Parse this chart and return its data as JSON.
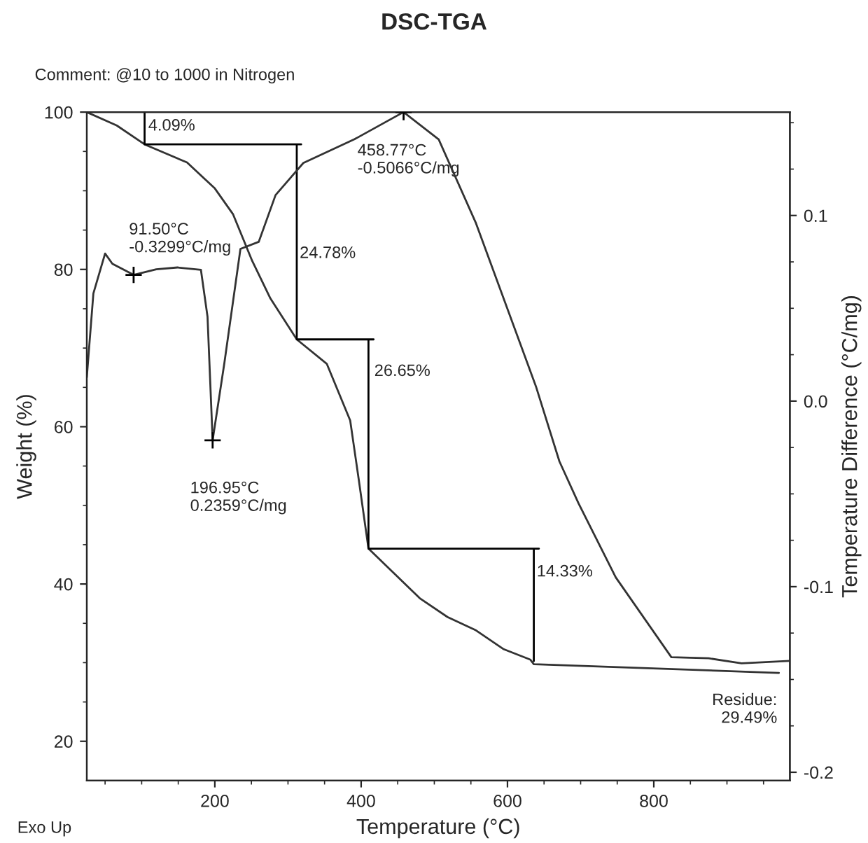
{
  "chart_data": {
    "type": "line",
    "title": "DSC-TGA",
    "xlabel": "Temperature (°C)",
    "ylabel": "Weight (%)",
    "y2label": "Temperature Difference (°C/mg)",
    "xlim": [
      25,
      986
    ],
    "ylim": [
      15,
      100
    ],
    "y2lim": [
      -0.2045,
      0.1557
    ],
    "xticks": [
      {
        "value": 50,
        "label": null
      },
      {
        "value": 100,
        "label": null
      },
      {
        "value": 150,
        "label": null
      },
      200,
      {
        "value": 250,
        "label": null
      },
      {
        "value": 300,
        "label": null
      },
      {
        "value": 350,
        "label": null
      },
      400,
      {
        "value": 450,
        "label": null
      },
      {
        "value": 500,
        "label": null
      },
      {
        "value": 550,
        "label": null
      },
      600,
      {
        "value": 650,
        "label": null
      },
      {
        "value": 700,
        "label": null
      },
      {
        "value": 750,
        "label": null
      },
      800,
      {
        "value": 850,
        "label": null
      },
      {
        "value": 900,
        "label": null
      },
      {
        "value": 950,
        "label": null
      }
    ],
    "yticks": [
      20,
      {
        "value": 25,
        "label": null
      },
      {
        "value": 30,
        "label": null
      },
      {
        "value": 35,
        "label": null
      },
      40,
      {
        "value": 45,
        "label": null
      },
      {
        "value": 50,
        "label": null
      },
      {
        "value": 55,
        "label": null
      },
      60,
      {
        "value": 65,
        "label": null
      },
      {
        "value": 70,
        "label": null
      },
      {
        "value": 75,
        "label": null
      },
      80,
      {
        "value": 85,
        "label": null
      },
      {
        "value": 90,
        "label": null
      },
      {
        "value": 95,
        "label": null
      },
      100
    ],
    "y2ticks": [
      -0.2,
      {
        "value": -0.175,
        "label": null
      },
      {
        "value": -0.15,
        "label": null
      },
      {
        "value": -0.125,
        "label": null
      },
      -0.1,
      {
        "value": -0.075,
        "label": null
      },
      {
        "value": -0.05,
        "label": null
      },
      {
        "value": -0.025,
        "label": null
      },
      {
        "value": 0.0,
        "label": "0.0"
      },
      {
        "value": 0.025,
        "label": null
      },
      {
        "value": 0.05,
        "label": null
      },
      {
        "value": 0.075,
        "label": null
      },
      {
        "value": 0.1,
        "label": "0.1"
      },
      {
        "value": 0.125,
        "label": null
      },
      {
        "value": 0.15,
        "label": null
      }
    ],
    "grid": false,
    "legend": false,
    "series": [
      {
        "axis": "y",
        "color": "#333333",
        "x": [
          25,
          66,
          104,
          162,
          200,
          225,
          251,
          276,
          312,
          353,
          385,
          397,
          410,
          480,
          518,
          557,
          595,
          631,
          636,
          971
        ],
        "values": [
          100,
          98.3,
          95.9,
          93.6,
          90.3,
          87,
          81.1,
          76.3,
          71.1,
          68,
          60.8,
          53.1,
          44.5,
          38.2,
          35.8,
          34.1,
          31.7,
          30.4,
          29.8,
          28.7
        ]
      },
      {
        "axis": "y2",
        "color": "#333333",
        "x": [
          25,
          34,
          50,
          60,
          89,
          120,
          149,
          181,
          190,
          197,
          213,
          235,
          260,
          283,
          321,
          391,
          458,
          506,
          557,
          639,
          671,
          697,
          748,
          824,
          875,
          920,
          986
        ],
        "values": [
          0.0128,
          0.058,
          0.0795,
          0.074,
          0.068,
          0.071,
          0.072,
          0.0707,
          0.0455,
          -0.0211,
          0.0204,
          0.082,
          0.0858,
          0.111,
          0.1283,
          0.1411,
          0.1557,
          0.141,
          0.0958,
          0.0078,
          -0.0325,
          -0.055,
          -0.095,
          -0.138,
          -0.1386,
          -0.1413,
          -0.14
        ]
      },
      {
        "axis": "y",
        "color": "#000000",
        "x": [
          104,
          104,
          318,
          312,
          312,
          417,
          410,
          410,
          643,
          636,
          636
        ],
        "values": [
          100,
          95.9,
          95.9,
          95.9,
          71.1,
          71.1,
          71.1,
          44.5,
          44.5,
          44.5,
          30.2
        ]
      },
      {
        "type": "scatter",
        "axis": "y2",
        "marker": "cross",
        "color": "#000000",
        "x": [
          89,
          197,
          458
        ],
        "values": [
          0.068,
          -0.0211,
          0.1557
        ]
      }
    ],
    "annotations": [
      "Comment: @10 to 1000 in Nitrogen",
      "Exo Up",
      {
        "text": "4.09%",
        "x": 109,
        "y": 98.2
      },
      {
        "text": "24.78%",
        "x": 316,
        "y": 82
      },
      {
        "text": "26.65%",
        "x": 418,
        "y": 67
      },
      {
        "text": "14.33%",
        "x": 640,
        "y": 41.5
      },
      "91.50°C\n-0.3299°C/mg",
      "196.95°C\n0.2359°C/mg",
      "458.77°C\n-0.5066°C/mg",
      "Residue:\n29.49%"
    ]
  }
}
